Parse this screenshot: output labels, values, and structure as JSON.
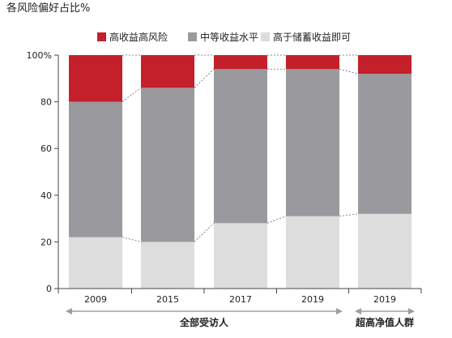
{
  "chart_data": {
    "type": "bar",
    "stacked": true,
    "title": "各风险偏好占比%",
    "xlabel": "",
    "ylabel": "",
    "ylim": [
      0,
      100
    ],
    "y_ticks": [
      "0",
      "20",
      "40",
      "60",
      "80",
      "100%"
    ],
    "categories": [
      "2009",
      "2015",
      "2017",
      "2019",
      "2019"
    ],
    "series": [
      {
        "name": "高于储蓄收益即可",
        "color": "#dedddd",
        "values": [
          22,
          20,
          28,
          31,
          32
        ]
      },
      {
        "name": "中等收益水平",
        "color": "#9a999d",
        "values": [
          58,
          66,
          66,
          63,
          60
        ]
      },
      {
        "name": "高收益高风险",
        "color": "#c4202b",
        "values": [
          20,
          14,
          6,
          6,
          8
        ]
      }
    ],
    "legend_position": "top",
    "grid": false,
    "connector_lines": true,
    "group_labels": [
      {
        "label": "全部受访人",
        "from_index": 0,
        "to_index": 3
      },
      {
        "label": "超高净值人群",
        "from_index": 4,
        "to_index": 4
      }
    ],
    "colors": {
      "axis": "#444444",
      "group_arrow": "#9e9e9e",
      "connector": "#666666"
    }
  }
}
